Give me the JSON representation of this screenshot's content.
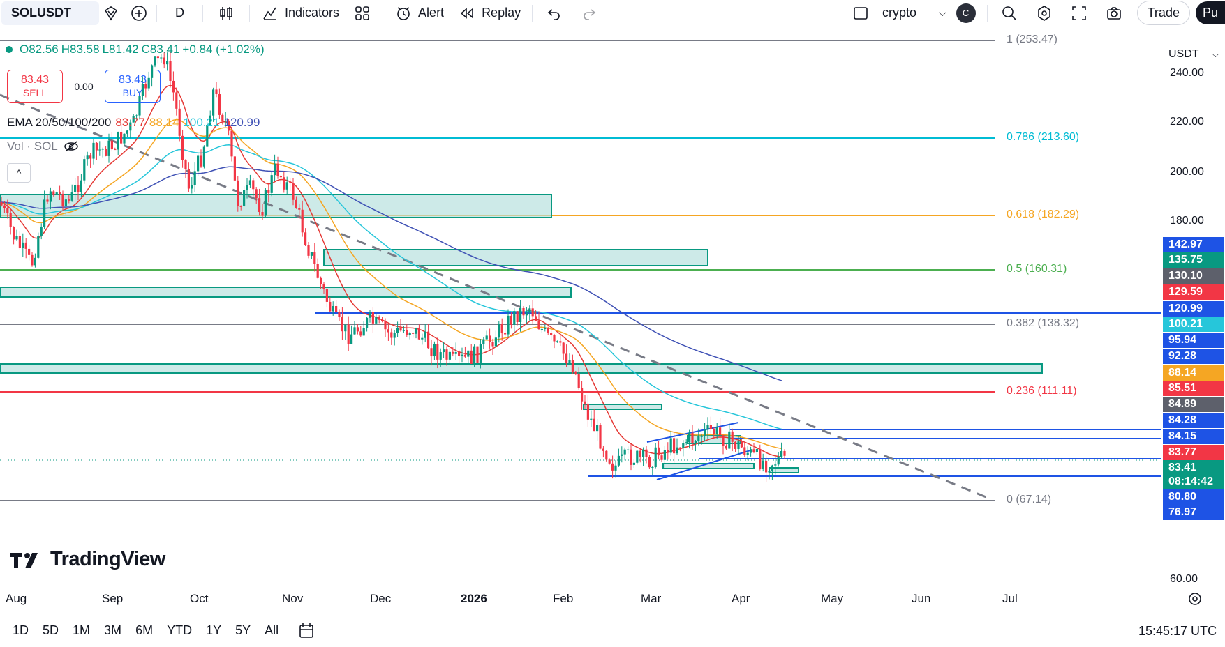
{
  "toolbar": {
    "symbol": "SOLUSDT",
    "interval": "D",
    "indicators_label": "Indicators",
    "alert_label": "Alert",
    "replay_label": "Replay",
    "layout_name": "crypto",
    "avatar_letter": "C",
    "trade_label": "Trade",
    "publish_label": "Pu"
  },
  "legend": {
    "open": "O82.56",
    "high": "H83.58",
    "low": "L81.42",
    "close": "C83.41",
    "change": "+0.84 (+1.02%)",
    "sell_price": "83.43",
    "sell_label": "SELL",
    "spread": "0.00",
    "buy_price": "83.43",
    "buy_label": "BUY",
    "ema_label": "EMA 20/50/100/200",
    "ema20": "83.77",
    "ema50": "88.14",
    "ema100": "100.21",
    "ema200": "120.99",
    "vol_label": "Vol · SOL"
  },
  "colors": {
    "up": "#089981",
    "down": "#f23645",
    "ema20": "#e53935",
    "ema50": "#f5a623",
    "ema100": "#26c6da",
    "ema200": "#3f51b5",
    "zone_fill": "#b2dfdb",
    "zone_border": "#089981",
    "blue_line": "#1e53e5"
  },
  "fib_levels": [
    {
      "label": "1 (253.47)",
      "color": "#787b86"
    },
    {
      "label": "0.786 (213.60)",
      "color": "#00bcd4"
    },
    {
      "label": "0.618 (182.29)",
      "color": "#f5a623"
    },
    {
      "label": "0.5 (160.31)",
      "color": "#4caf50"
    },
    {
      "label": "0.382 (138.32)",
      "color": "#787b86"
    },
    {
      "label": "0.236 (111.11)",
      "color": "#f23645"
    },
    {
      "label": "0 (67.14)",
      "color": "#787b86"
    }
  ],
  "price_scale": {
    "currency": "USDT",
    "ticks": [
      "240.00",
      "220.00",
      "200.00",
      "180.00",
      "60.00"
    ],
    "badges": [
      {
        "value": "142.97",
        "bg": "#1e53e5"
      },
      {
        "value": "135.75",
        "bg": "#089981"
      },
      {
        "value": "130.10",
        "bg": "#5d606b"
      },
      {
        "value": "129.59",
        "bg": "#f23645"
      },
      {
        "value": "120.99",
        "bg": "#1e53e5"
      },
      {
        "value": "100.21",
        "bg": "#26c6da"
      },
      {
        "value": "95.94",
        "bg": "#1e53e5"
      },
      {
        "value": "92.28",
        "bg": "#1e53e5"
      },
      {
        "value": "88.14",
        "bg": "#f5a623"
      },
      {
        "value": "85.51",
        "bg": "#f23645"
      },
      {
        "value": "84.89",
        "bg": "#5d606b"
      },
      {
        "value": "84.28",
        "bg": "#1e53e5"
      },
      {
        "value": "84.15",
        "bg": "#1e53e5"
      },
      {
        "value": "83.77",
        "bg": "#f23645"
      },
      {
        "value": "83.41",
        "bg": "#089981"
      },
      {
        "value": "08:14:42",
        "bg": "#089981"
      },
      {
        "value": "80.80",
        "bg": "#1e53e5"
      },
      {
        "value": "76.97",
        "bg": "#1e53e5"
      }
    ]
  },
  "time_axis": [
    "Aug",
    "Sep",
    "Oct",
    "Nov",
    "Dec",
    "2026",
    "Feb",
    "Mar",
    "Apr",
    "May",
    "Jun",
    "Jul"
  ],
  "ranges": [
    "1D",
    "5D",
    "1M",
    "3M",
    "6M",
    "YTD",
    "1Y",
    "5Y",
    "All"
  ],
  "clock": "15:45:17 UTC",
  "logo_text": "TradingView"
}
